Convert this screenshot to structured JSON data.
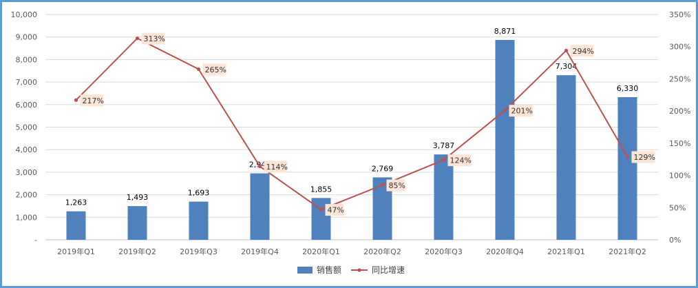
{
  "chart_data": {
    "type": "bar",
    "categories": [
      "2019年Q1",
      "2019年Q2",
      "2019年Q3",
      "2019年Q4",
      "2020年Q1",
      "2020年Q2",
      "2020年Q3",
      "2020年Q4",
      "2021年Q1",
      "2021年Q2"
    ],
    "series": [
      {
        "name": "销售额",
        "type": "bar",
        "axis": "left",
        "color": "#4f81bd",
        "values": [
          1263,
          1493,
          1693,
          2947,
          1855,
          2769,
          3787,
          8871,
          7304,
          6330
        ],
        "labels": [
          "1,263",
          "1,493",
          "1,693",
          "2,947",
          "1,855",
          "2,769",
          "3,787",
          "8,871",
          "7,304",
          "6,330"
        ]
      },
      {
        "name": "同比增速",
        "type": "line",
        "axis": "right",
        "color": "#c0504d",
        "values": [
          217,
          313,
          265,
          114,
          47,
          85,
          124,
          201,
          294,
          129
        ],
        "labels": [
          "217%",
          "313%",
          "265%",
          "114%",
          "47%",
          "85%",
          "124%",
          "201%",
          "294%",
          "129%"
        ]
      }
    ],
    "y_left": {
      "ylim": [
        0,
        10000
      ],
      "ticks": [
        0,
        1000,
        2000,
        3000,
        4000,
        5000,
        6000,
        7000,
        8000,
        9000,
        10000
      ],
      "tick_labels": [
        "-",
        "1,000",
        "2,000",
        "3,000",
        "4,000",
        "5,000",
        "6,000",
        "7,000",
        "8,000",
        "9,000",
        "10,000"
      ]
    },
    "y_right": {
      "ylim": [
        0,
        350
      ],
      "ticks": [
        0,
        50,
        100,
        150,
        200,
        250,
        300,
        350
      ],
      "tick_labels": [
        "0%",
        "50%",
        "100%",
        "150%",
        "200%",
        "250%",
        "300%",
        "350%"
      ]
    },
    "grid": true,
    "legend_position": "bottom-center",
    "label_box_color": "#fbe5d6"
  }
}
